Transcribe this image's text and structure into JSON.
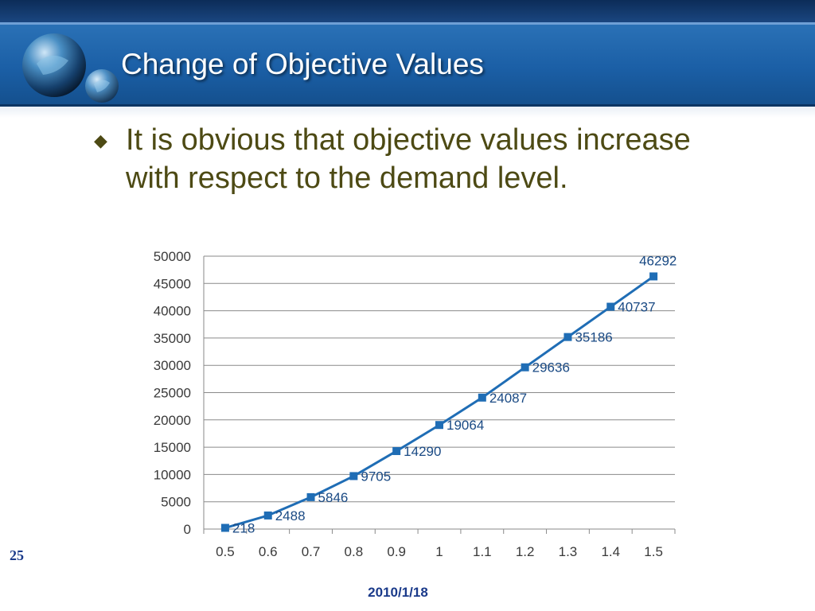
{
  "slide": {
    "title": "Change of Objective Values",
    "bullet": "It is obvious that objective values increase with respect to the demand level.",
    "slide_number": "25",
    "footer_date": "2010/1/18"
  },
  "colors": {
    "series": "#1f6db5",
    "title": "#ffffff",
    "bullet_text": "#4d4a14",
    "footer": "#1a3a8a",
    "header_band": "#1b5fa6"
  },
  "icons": {
    "bullet": "diamond-icon",
    "logo": "globe-logo-icon"
  },
  "chart_data": {
    "type": "line",
    "title": "",
    "xlabel": "",
    "ylabel": "",
    "categories": [
      "0.5",
      "0.6",
      "0.7",
      "0.8",
      "0.9",
      "1",
      "1.1",
      "1.2",
      "1.3",
      "1.4",
      "1.5"
    ],
    "series": [
      {
        "values": [
          218,
          2488,
          5846,
          9705,
          14290,
          19064,
          24087,
          29636,
          35186,
          40737,
          46292
        ]
      }
    ],
    "data_labels": [
      "218",
      "2488",
      "5846",
      "9705",
      "14290",
      "19064",
      "24087",
      "29636",
      "35186",
      "40737",
      "46292"
    ],
    "ylim": [
      0,
      50000
    ],
    "yticks": [
      "0",
      "5000",
      "10000",
      "15000",
      "20000",
      "25000",
      "30000",
      "35000",
      "40000",
      "45000",
      "50000"
    ],
    "grid": true,
    "legend": "none",
    "markers": "square"
  }
}
